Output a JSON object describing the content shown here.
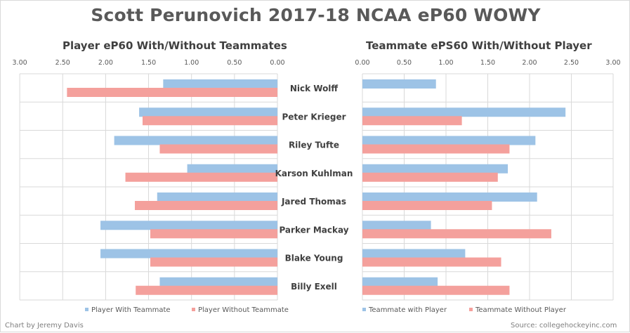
{
  "chart_title": "Scott Perunovich 2017-18 NCAA eP60 WOWY",
  "footer": {
    "credit": "Chart by Jeremy Davis",
    "source": "Source: collegehockeyinc.com"
  },
  "colors": {
    "with": "#9dc3e6",
    "without": "#f4a09c",
    "grid": "#d9d9d9",
    "text": "#595959"
  },
  "chart_data": [
    {
      "type": "bar",
      "orientation": "horizontal",
      "x_direction": "reversed",
      "title": "Player eP60 With/Without Teammates",
      "categories": [
        "Nick Wolff",
        "Peter Krieger",
        "Riley Tufte",
        "Karson Kuhlman",
        "Jared Thomas",
        "Parker Mackay",
        "Blake Young",
        "Billy Exell"
      ],
      "series": [
        {
          "name": "Player With Teammate",
          "color": "#9dc3e6",
          "values": [
            1.33,
            1.61,
            1.9,
            1.05,
            1.4,
            2.06,
            2.06,
            1.37
          ]
        },
        {
          "name": "Player Without Teammate",
          "color": "#f4a09c",
          "values": [
            2.45,
            1.57,
            1.37,
            1.77,
            1.66,
            1.48,
            1.48,
            1.65
          ]
        }
      ],
      "xlim": [
        0,
        3
      ],
      "xticks": [
        "3.00",
        "2.50",
        "2.00",
        "1.50",
        "1.00",
        "0.50",
        "0.00"
      ],
      "legend_position": "bottom"
    },
    {
      "type": "bar",
      "orientation": "horizontal",
      "title": "Teammate ePS60 With/Without Player",
      "categories": [
        "Nick Wolff",
        "Peter Krieger",
        "Riley Tufte",
        "Karson Kuhlman",
        "Jared Thomas",
        "Parker Mackay",
        "Blake Young",
        "Billy Exell"
      ],
      "series": [
        {
          "name": "Teammate with Player",
          "color": "#9dc3e6",
          "values": [
            0.88,
            2.43,
            2.07,
            1.74,
            2.09,
            0.82,
            1.23,
            0.9
          ]
        },
        {
          "name": "Teammate Without Player",
          "color": "#f4a09c",
          "values": [
            null,
            1.19,
            1.76,
            1.62,
            1.55,
            2.26,
            1.66,
            1.76
          ]
        }
      ],
      "xlim": [
        0,
        3
      ],
      "xticks": [
        "0.00",
        "0.50",
        "1.00",
        "1.50",
        "2.00",
        "2.50",
        "3.00"
      ],
      "legend_position": "bottom"
    }
  ]
}
